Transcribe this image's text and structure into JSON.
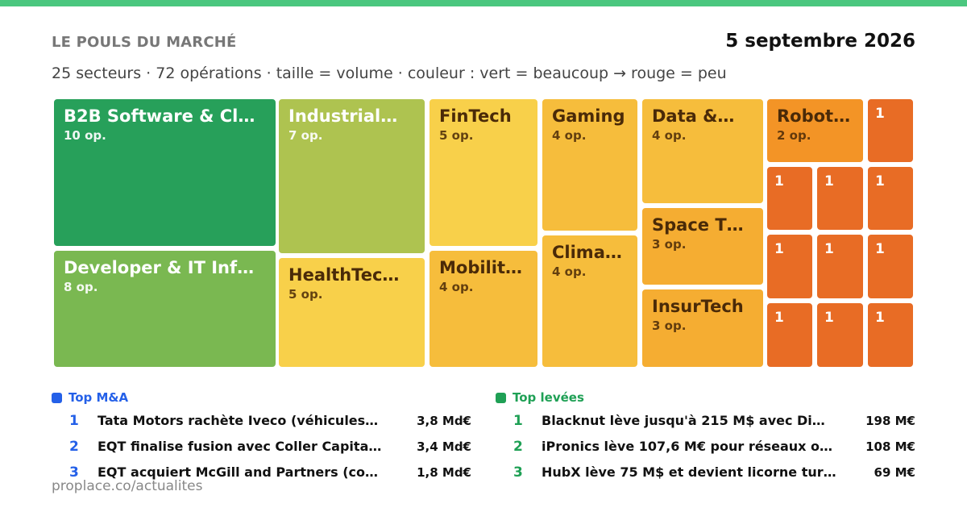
{
  "header": {
    "kicker": "LE POULS DU MARCHÉ",
    "date": "5 septembre 2026",
    "subtitle": "25 secteurs · 72 opérations · taille = volume · couleur : vert = beaucoup → rouge = peu"
  },
  "chart_data": {
    "type": "treemap",
    "value_label": "op.",
    "color_legend": "vert = beaucoup → rouge = peu",
    "sectors": [
      {
        "name": "B2B Software & Cl…",
        "count": 10,
        "color": "#27a05a",
        "text_color": "#ffffff"
      },
      {
        "name": "Developer & IT Inf…",
        "count": 8,
        "color": "#7ab851",
        "text_color": "#ffffff"
      },
      {
        "name": "Industrial…",
        "count": 7,
        "color": "#aec350",
        "text_color": "#ffffff"
      },
      {
        "name": "HealthTec…",
        "count": 5,
        "color": "#f8d04a",
        "text_color": "#4a2a08"
      },
      {
        "name": "FinTech",
        "count": 5,
        "color": "#f8d04a",
        "text_color": "#4a2a08"
      },
      {
        "name": "Mobilit…",
        "count": 4,
        "color": "#f6bd3c",
        "text_color": "#4a2a08"
      },
      {
        "name": "Gaming",
        "count": 4,
        "color": "#f6bd3c",
        "text_color": "#4a2a08"
      },
      {
        "name": "Clima…",
        "count": 4,
        "color": "#f6bd3c",
        "text_color": "#4a2a08"
      },
      {
        "name": "Data &…",
        "count": 4,
        "color": "#f6bd3c",
        "text_color": "#4a2a08"
      },
      {
        "name": "Space T…",
        "count": 3,
        "color": "#f5ad32",
        "text_color": "#4a2a08"
      },
      {
        "name": "InsurTech",
        "count": 3,
        "color": "#f5ad32",
        "text_color": "#4a2a08"
      },
      {
        "name": "Robot…",
        "count": 2,
        "color": "#f39426",
        "text_color": "#4a2a08"
      },
      {
        "name": "",
        "count": 1,
        "color": "#e86c25",
        "text_color": "#ffffff"
      },
      {
        "name": "",
        "count": 1,
        "color": "#e86c25",
        "text_color": "#ffffff"
      },
      {
        "name": "",
        "count": 1,
        "color": "#e86c25",
        "text_color": "#ffffff"
      },
      {
        "name": "",
        "count": 1,
        "color": "#e86c25",
        "text_color": "#ffffff"
      },
      {
        "name": "",
        "count": 1,
        "color": "#e86c25",
        "text_color": "#ffffff"
      },
      {
        "name": "",
        "count": 1,
        "color": "#e86c25",
        "text_color": "#ffffff"
      },
      {
        "name": "",
        "count": 1,
        "color": "#e86c25",
        "text_color": "#ffffff"
      },
      {
        "name": "",
        "count": 1,
        "color": "#e86c25",
        "text_color": "#ffffff"
      },
      {
        "name": "",
        "count": 1,
        "color": "#e86c25",
        "text_color": "#ffffff"
      },
      {
        "name": "",
        "count": 1,
        "color": "#e86c25",
        "text_color": "#ffffff"
      }
    ]
  },
  "lists": {
    "ma": {
      "title": "Top M&A",
      "accent": "#2460e8",
      "items": [
        {
          "rank": "1",
          "text": "Tata Motors rachète Iveco (véhicules…",
          "amount": "3,8 Md€"
        },
        {
          "rank": "2",
          "text": "EQT finalise fusion avec Coller Capita…",
          "amount": "3,4 Md€"
        },
        {
          "rank": "3",
          "text": "EQT acquiert McGill and Partners (co…",
          "amount": "1,8 Md€"
        }
      ]
    },
    "funding": {
      "title": "Top levées",
      "accent": "#1fa055",
      "items": [
        {
          "rank": "1",
          "text": "Blacknut lève jusqu'à 215 M$ avec Di…",
          "amount": "198 M€"
        },
        {
          "rank": "2",
          "text": "iPronics lève 107,6 M€ pour réseaux o…",
          "amount": "108 M€"
        },
        {
          "rank": "3",
          "text": "HubX lève 75 M$ et devient licorne tur…",
          "amount": "69 M€"
        }
      ]
    }
  },
  "footer": {
    "url": "proplace.co/actualites"
  }
}
